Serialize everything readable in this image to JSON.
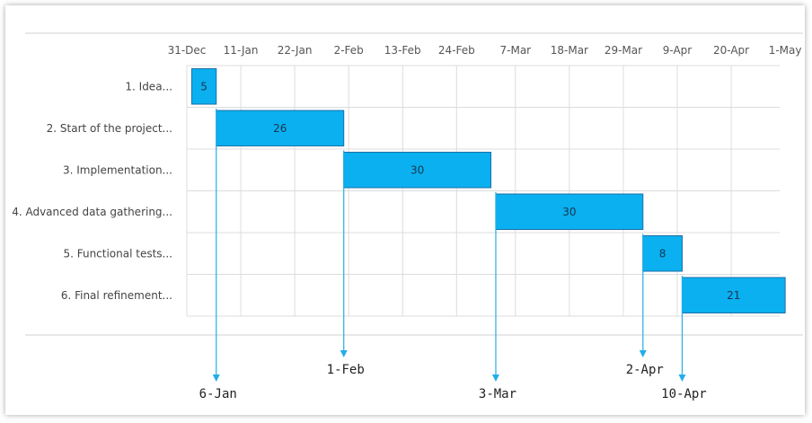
{
  "chart_data": {
    "type": "gantt",
    "x_ticks": [
      "31-Dec",
      "11-Jan",
      "22-Jan",
      "2-Feb",
      "13-Feb",
      "24-Feb",
      "7-Mar",
      "18-Mar",
      "29-Mar",
      "9-Apr",
      "20-Apr",
      "1-May"
    ],
    "x_range": [
      "31-Dec",
      "1-May"
    ],
    "tasks": [
      {
        "label": "1. Idea...",
        "start": "1-Jan",
        "duration_days": 5
      },
      {
        "label": "2. Start of the project...",
        "start": "6-Jan",
        "duration_days": 26
      },
      {
        "label": "3. Implementation...",
        "start": "1-Feb",
        "duration_days": 30
      },
      {
        "label": "4. Advanced data gathering...",
        "start": "3-Mar",
        "duration_days": 30
      },
      {
        "label": "5. Functional tests...",
        "start": "2-Apr",
        "duration_days": 8
      },
      {
        "label": "6. Final refinement...",
        "start": "10-Apr",
        "duration_days": 21
      }
    ],
    "milestones": [
      {
        "label": "6-Jan",
        "date": "6-Jan"
      },
      {
        "label": "1-Feb",
        "date": "1-Feb"
      },
      {
        "label": "3-Mar",
        "date": "3-Mar"
      },
      {
        "label": "2-Apr",
        "date": "2-Apr"
      },
      {
        "label": "10-Apr",
        "date": "10-Apr"
      }
    ],
    "grid": true,
    "bar_color": "#0ab0ef",
    "bar_border_color": "#1b6fa8",
    "milestone_color": "#22aee8"
  }
}
